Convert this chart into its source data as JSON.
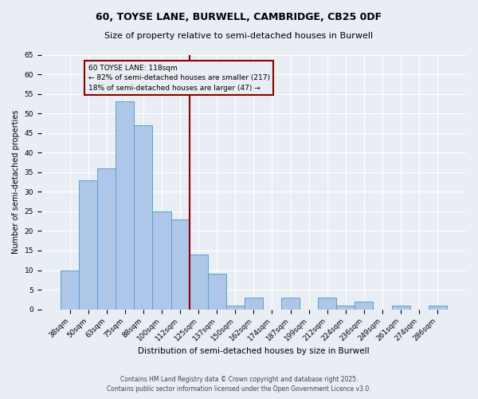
{
  "title": "60, TOYSE LANE, BURWELL, CAMBRIDGE, CB25 0DF",
  "subtitle": "Size of property relative to semi-detached houses in Burwell",
  "xlabel": "Distribution of semi-detached houses by size in Burwell",
  "ylabel": "Number of semi-detached properties",
  "categories": [
    "38sqm",
    "50sqm",
    "63sqm",
    "75sqm",
    "88sqm",
    "100sqm",
    "112sqm",
    "125sqm",
    "137sqm",
    "150sqm",
    "162sqm",
    "174sqm",
    "187sqm",
    "199sqm",
    "212sqm",
    "224sqm",
    "236sqm",
    "249sqm",
    "261sqm",
    "274sqm",
    "286sqm"
  ],
  "values": [
    10,
    33,
    36,
    53,
    47,
    25,
    23,
    14,
    9,
    1,
    3,
    0,
    3,
    0,
    3,
    1,
    2,
    0,
    1,
    0,
    1
  ],
  "bar_color": "#aec6e8",
  "bar_edge_color": "#5a9fd4",
  "vline_color": "#8b0000",
  "vline_label_title": "60 TOYSE LANE: 118sqm",
  "vline_label_line2": "← 82% of semi-detached houses are smaller (217)",
  "vline_label_line3": "18% of semi-detached houses are larger (47) →",
  "annotation_box_color": "#8b0000",
  "ylim": [
    0,
    65
  ],
  "yticks": [
    0,
    5,
    10,
    15,
    20,
    25,
    30,
    35,
    40,
    45,
    50,
    55,
    60,
    65
  ],
  "background_color": "#e8eef4",
  "grid_color": "#ffffff",
  "footnote1": "Contains HM Land Registry data © Crown copyright and database right 2025.",
  "footnote2": "Contains public sector information licensed under the Open Government Licence v3.0.",
  "title_fontsize": 9,
  "subtitle_fontsize": 8,
  "xlabel_fontsize": 7.5,
  "ylabel_fontsize": 7,
  "tick_fontsize": 6.5,
  "annot_fontsize": 6.5,
  "footnote_fontsize": 5.5
}
